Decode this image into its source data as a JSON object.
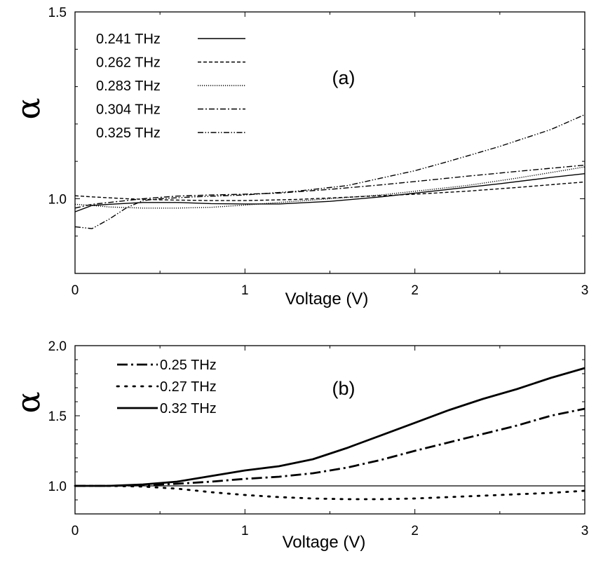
{
  "chart_data": [
    {
      "type": "line",
      "panel_label": "(a)",
      "xlabel": "Voltage (V)",
      "ylabel": "α",
      "xlim": [
        0,
        3
      ],
      "ylim": [
        0.8,
        1.5
      ],
      "xticks": [
        "0",
        "1",
        "2",
        "3"
      ],
      "yticks": [
        "1.0",
        "1.5"
      ],
      "grid": false,
      "legend_placement": "top-left",
      "series": [
        {
          "name": "0.241 THz",
          "style": "solid",
          "x": [
            0,
            0.1,
            0.2,
            0.4,
            0.6,
            0.8,
            1.0,
            1.2,
            1.5,
            1.8,
            2.0,
            2.2,
            2.5,
            2.8,
            3.0
          ],
          "y": [
            0.965,
            0.982,
            0.985,
            0.99,
            0.99,
            0.987,
            0.986,
            0.986,
            0.993,
            1.005,
            1.015,
            1.025,
            1.04,
            1.057,
            1.067
          ]
        },
        {
          "name": "0.262 THz",
          "style": "dashed",
          "x": [
            0,
            0.1,
            0.3,
            0.5,
            0.8,
            1.0,
            1.3,
            1.6,
            2.0,
            2.3,
            2.6,
            3.0
          ],
          "y": [
            1.008,
            1.005,
            1.0,
            0.997,
            0.995,
            0.995,
            0.998,
            1.004,
            1.012,
            1.02,
            1.03,
            1.045
          ]
        },
        {
          "name": "0.283 THz",
          "style": "dotted",
          "x": [
            0,
            0.1,
            0.2,
            0.4,
            0.6,
            0.8,
            1.0,
            1.2,
            1.5,
            1.8,
            2.0,
            2.3,
            2.6,
            3.0
          ],
          "y": [
            0.985,
            0.982,
            0.978,
            0.975,
            0.975,
            0.977,
            0.983,
            0.99,
            1.0,
            1.01,
            1.02,
            1.035,
            1.055,
            1.085
          ]
        },
        {
          "name": "0.304 THz",
          "style": "dashdot",
          "x": [
            0,
            0.1,
            0.2,
            0.4,
            0.6,
            0.8,
            1.0,
            1.2,
            1.5,
            1.8,
            2.0,
            2.3,
            2.6,
            3.0
          ],
          "y": [
            0.975,
            0.985,
            0.99,
            1.0,
            1.007,
            1.01,
            1.012,
            1.015,
            1.025,
            1.037,
            1.046,
            1.06,
            1.073,
            1.09
          ]
        },
        {
          "name": "0.325 THz",
          "style": "dashdotdot",
          "x": [
            0,
            0.1,
            0.2,
            0.3,
            0.4,
            0.5,
            0.7,
            1.0,
            1.3,
            1.6,
            1.8,
            2.0,
            2.2,
            2.5,
            2.8,
            3.0
          ],
          "y": [
            0.925,
            0.92,
            0.945,
            0.975,
            0.995,
            1.0,
            1.005,
            1.01,
            1.02,
            1.035,
            1.055,
            1.075,
            1.1,
            1.14,
            1.185,
            1.225
          ]
        }
      ]
    },
    {
      "type": "line",
      "panel_label": "(b)",
      "xlabel": "Voltage (V)",
      "ylabel": "α",
      "xlim": [
        0,
        3
      ],
      "ylim": [
        0.8,
        2.0
      ],
      "xticks": [
        "0",
        "1",
        "2",
        "3"
      ],
      "yticks": [
        "1.0",
        "1.5",
        "2.0"
      ],
      "grid": false,
      "reference_line_y": 1.0,
      "legend_placement": "top-left",
      "series": [
        {
          "name": "0.25 THz",
          "style": "dashdot",
          "x": [
            0,
            0.2,
            0.4,
            0.6,
            0.8,
            1.0,
            1.2,
            1.4,
            1.6,
            1.8,
            2.0,
            2.2,
            2.4,
            2.6,
            2.8,
            3.0
          ],
          "y": [
            1.0,
            1.0,
            1.005,
            1.015,
            1.03,
            1.05,
            1.065,
            1.09,
            1.13,
            1.185,
            1.25,
            1.31,
            1.37,
            1.43,
            1.5,
            1.55
          ]
        },
        {
          "name": "0.27 THz",
          "style": "dotted",
          "x": [
            0,
            0.2,
            0.4,
            0.6,
            0.8,
            1.0,
            1.2,
            1.4,
            1.6,
            1.8,
            2.0,
            2.2,
            2.4,
            2.6,
            2.8,
            3.0
          ],
          "y": [
            1.0,
            1.0,
            0.995,
            0.98,
            0.955,
            0.935,
            0.92,
            0.91,
            0.905,
            0.905,
            0.91,
            0.92,
            0.93,
            0.94,
            0.95,
            0.965
          ]
        },
        {
          "name": "0.32 THz",
          "style": "solid",
          "x": [
            0,
            0.2,
            0.4,
            0.6,
            0.8,
            1.0,
            1.1,
            1.2,
            1.4,
            1.6,
            1.8,
            2.0,
            2.2,
            2.4,
            2.6,
            2.8,
            3.0
          ],
          "y": [
            1.0,
            1.0,
            1.01,
            1.03,
            1.07,
            1.11,
            1.125,
            1.14,
            1.19,
            1.27,
            1.36,
            1.45,
            1.54,
            1.62,
            1.69,
            1.77,
            1.84
          ]
        }
      ]
    }
  ]
}
